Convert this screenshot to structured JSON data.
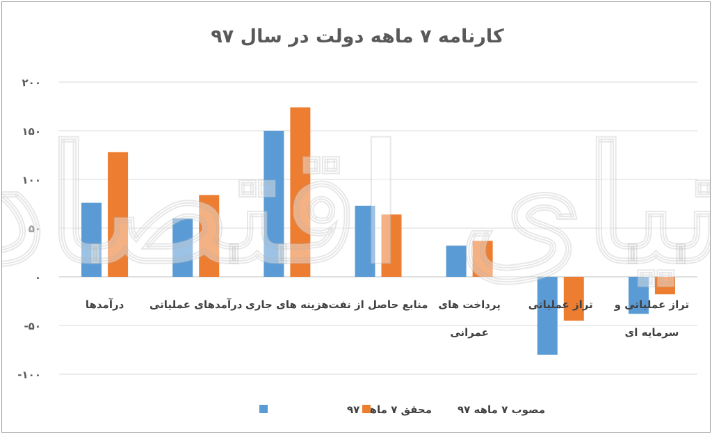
{
  "chart_data": {
    "type": "bar",
    "title": "کارنامه ۷ ماهه دولت در سال ۹۷",
    "categories": [
      [
        "درآمدها"
      ],
      [
        "درآمدهای عملیاتی"
      ],
      [
        "هزینه های جاری"
      ],
      [
        "منابع حاصل از نفت"
      ],
      [
        "پرداخت های",
        "عمرانی"
      ],
      [
        "تراز عملیاتی"
      ],
      [
        "تراز عملیاتی و",
        "سرمایه ای"
      ]
    ],
    "series": [
      {
        "name": "محقق ۷ ماهه ۹۷",
        "color": "#5b9bd5",
        "values": [
          76,
          60,
          150,
          73,
          32,
          -80,
          -38
        ]
      },
      {
        "name": "مصوب ۷ ماهه ۹۷",
        "color": "#ed7d31",
        "values": [
          128,
          84,
          174,
          64,
          37,
          -45,
          -18
        ]
      }
    ],
    "ylim": [
      -100,
      200
    ],
    "yticks": [
      200,
      150,
      100,
      50,
      0,
      -50,
      -100
    ],
    "ytick_labels": [
      "۲۰۰",
      "۱۵۰",
      "۱۰۰",
      "۵۰",
      "۰",
      "-۵۰",
      "-۱۰۰"
    ],
    "grid": true,
    "legend_position": "bottom"
  },
  "watermark": {
    "text": "دنیای اقتصاد"
  }
}
